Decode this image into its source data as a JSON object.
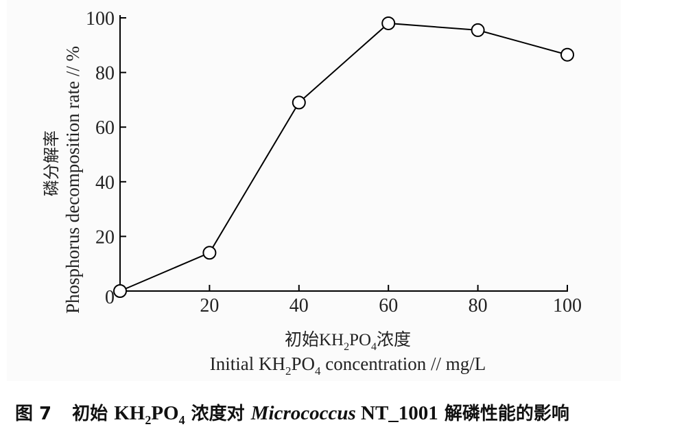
{
  "chart_data": {
    "type": "line",
    "x": [
      0,
      20,
      40,
      60,
      80,
      100
    ],
    "series": [
      {
        "values": [
          0,
          14,
          69,
          98,
          95.5,
          86.5
        ]
      }
    ],
    "xlim": [
      0,
      100
    ],
    "ylim": [
      0,
      100
    ],
    "x_ticks": [
      "0",
      "20",
      "40",
      "60",
      "80",
      "100"
    ],
    "y_ticks": [
      "0",
      "20",
      "40",
      "60",
      "80",
      "100"
    ],
    "xlabel_cn_prefix": "初始KH",
    "xlabel_cn_sub1": "2",
    "xlabel_cn_mid": "PO",
    "xlabel_cn_sub2": "4",
    "xlabel_cn_suffix": "浓度",
    "xlabel_en_prefix": "Initial KH",
    "xlabel_en_sub1": "2",
    "xlabel_en_mid": "PO",
    "xlabel_en_sub2": "4",
    "xlabel_en_suffix": " concentration // mg/L",
    "ylabel_cn": "磷分解率",
    "ylabel_en": "Phosphorus decomposition rate // %",
    "grid": false,
    "legend": "none",
    "line_color": "#000000",
    "marker": "open-circle"
  },
  "caption": {
    "label": "图 7",
    "text1": "初始 ",
    "formula_kh": "KH",
    "formula_sub1": "2",
    "formula_po": "PO",
    "formula_sub2": "4",
    "text2": " 浓度对 ",
    "organism": "Micrococcus",
    "strain": " NT_1001",
    "text3": " 解磷性能的影响"
  }
}
